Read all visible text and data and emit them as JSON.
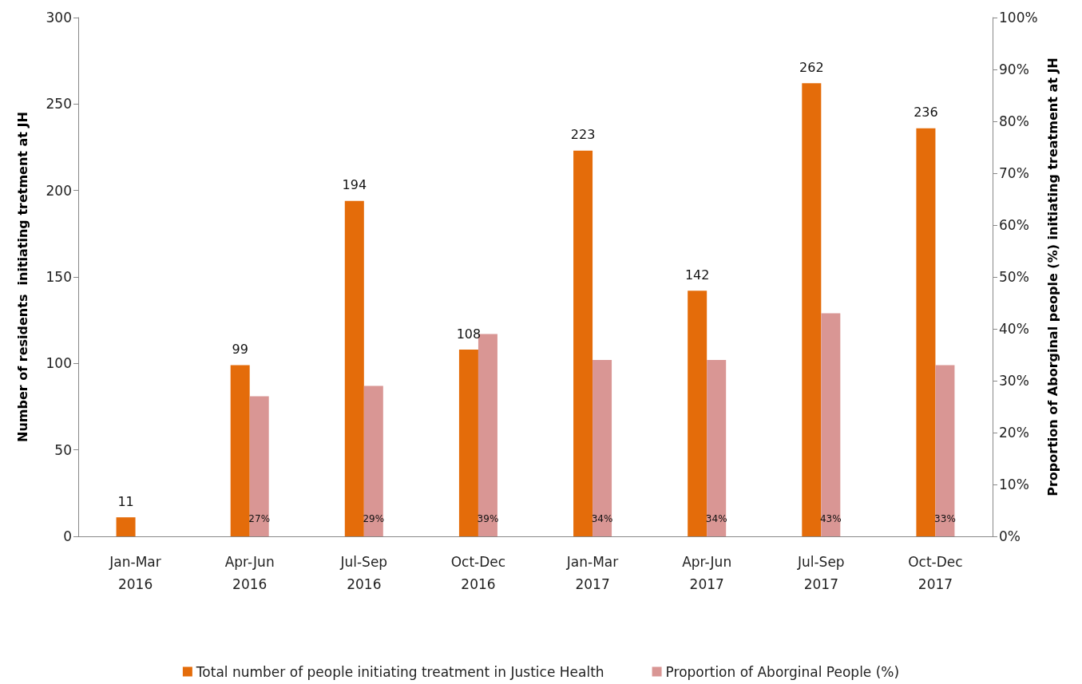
{
  "chart_data": {
    "type": "bar",
    "categories": [
      "Jan-Mar\n2016",
      "Apr-Jun\n2016",
      "Jul-Sep\n2016",
      "Oct-Dec\n2016",
      "Jan-Mar\n2017",
      "Apr-Jun\n2017",
      "Jul-Sep\n2017",
      "Oct-Dec\n2017"
    ],
    "ylabel": "Number of residents  initiating tretment at JH",
    "y2label": "Proportion of Aborginal people (%) initiating treatment at JH",
    "series": [
      {
        "name": "Total number of people initiating treatment in Justice Health",
        "color": "#e46c0a",
        "values": [
          11,
          99,
          194,
          108,
          223,
          142,
          262,
          236
        ],
        "value_labels": [
          "11",
          "99",
          "194",
          "108",
          "223",
          "142",
          "262",
          "236"
        ]
      },
      {
        "name": "Proportion of Aborginal People (%)",
        "color": "#d99694",
        "axis": "y2",
        "values": [
          null,
          27,
          29,
          39,
          34,
          34,
          43,
          33
        ],
        "value_labels": [
          null,
          "27%",
          "29%",
          "39%",
          "34%",
          "34%",
          "43%",
          "33%"
        ]
      }
    ],
    "ylim": [
      0,
      300
    ],
    "yticks": [
      0,
      50,
      100,
      150,
      200,
      250,
      300
    ],
    "y2lim": [
      0,
      100
    ],
    "y2ticks": [
      {
        "value": 0,
        "label": "0%"
      },
      {
        "value": 10,
        "label": "10%"
      },
      {
        "value": 20,
        "label": "20%"
      },
      {
        "value": 30,
        "label": "30%"
      },
      {
        "value": 40,
        "label": "40%"
      },
      {
        "value": 50,
        "label": "50%"
      },
      {
        "value": 60,
        "label": "60%"
      },
      {
        "value": 70,
        "label": "70%"
      },
      {
        "value": 80,
        "label": "80%"
      },
      {
        "value": 90,
        "label": "90%"
      },
      {
        "value": 100,
        "label": "100%"
      }
    ],
    "grid": false,
    "legend": "bottom"
  }
}
